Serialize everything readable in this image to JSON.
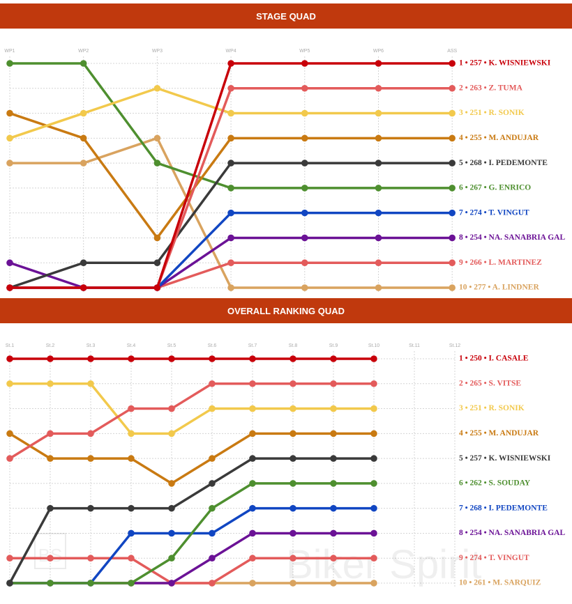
{
  "chart_data": [
    {
      "type": "line",
      "title": "STAGE QUAD",
      "categories": [
        "WP1",
        "WP2",
        "WP3",
        "WP4",
        "WP5",
        "WP6",
        "ASS"
      ],
      "ylim": [
        1,
        10
      ],
      "y_inverted": true,
      "yticks": [
        1,
        2,
        3,
        4,
        5,
        6,
        7,
        8,
        9,
        10
      ],
      "grid": true,
      "series": [
        {
          "name": "1 • 257 • K. WISNIEWSKI",
          "color": "#c8000a",
          "values": [
            10,
            10,
            10,
            1,
            1,
            1,
            1
          ]
        },
        {
          "name": "2 • 263 • Z. TUMA",
          "color": "#e35b5b",
          "values": [
            10,
            10,
            10,
            2,
            2,
            2,
            2
          ]
        },
        {
          "name": "3 • 251 • R. SONIK",
          "color": "#f2c94c",
          "values": [
            4,
            3,
            2,
            3,
            3,
            3,
            3
          ]
        },
        {
          "name": "4 • 255 • M. ANDUJAR",
          "color": "#c97a12",
          "values": [
            3,
            4,
            8,
            4,
            4,
            4,
            4
          ]
        },
        {
          "name": "5 • 268 • I. PEDEMONTE",
          "color": "#3a3a3a",
          "values": [
            10,
            9,
            9,
            5,
            5,
            5,
            5
          ]
        },
        {
          "name": "6 • 267 • G. ENRICO",
          "color": "#4e8f2f",
          "values": [
            1,
            1,
            5,
            6,
            6,
            6,
            6
          ]
        },
        {
          "name": "7 • 274 • T. VINGUT",
          "color": "#1146c2",
          "values": [
            10,
            10,
            10,
            7,
            7,
            7,
            7
          ]
        },
        {
          "name": "8 • 254 • NA. SANABRIA GAL",
          "color": "#6b1296",
          "values": [
            9,
            10,
            10,
            8,
            8,
            8,
            8
          ]
        },
        {
          "name": "9 • 266 • L. MARTINEZ",
          "color": "#e35b5b",
          "values": [
            10,
            10,
            10,
            9,
            9,
            9,
            9
          ]
        },
        {
          "name": "10 • 277 • A. LINDNER",
          "color": "#d9a35f",
          "values": [
            5,
            5,
            4,
            10,
            10,
            10,
            10
          ]
        }
      ]
    },
    {
      "type": "line",
      "title": "OVERALL RANKING QUAD",
      "categories": [
        "St.1",
        "St.2",
        "St.3",
        "St.4",
        "St.5",
        "St.6",
        "St.7",
        "St.8",
        "St.9",
        "St.10",
        "St.11",
        "St.12"
      ],
      "ylim": [
        1,
        10
      ],
      "y_inverted": true,
      "yticks": [
        1,
        2,
        3,
        4,
        5,
        6,
        7,
        8,
        9,
        10
      ],
      "grid": true,
      "series": [
        {
          "name": "1 • 250 • I. CASALE",
          "color": "#c8000a",
          "values": [
            1,
            1,
            1,
            1,
            1,
            1,
            1,
            1,
            1,
            1,
            null,
            null
          ]
        },
        {
          "name": "2 • 265 • S. VITSE",
          "color": "#e35b5b",
          "values": [
            5,
            4,
            4,
            3,
            3,
            2,
            2,
            2,
            2,
            2,
            null,
            null
          ]
        },
        {
          "name": "3 • 251 • R. SONIK",
          "color": "#f2c94c",
          "values": [
            2,
            2,
            2,
            4,
            4,
            3,
            3,
            3,
            3,
            3,
            null,
            null
          ]
        },
        {
          "name": "4 • 255 • M. ANDUJAR",
          "color": "#c97a12",
          "values": [
            4,
            5,
            5,
            5,
            6,
            5,
            4,
            4,
            4,
            4,
            null,
            null
          ]
        },
        {
          "name": "5 • 257 • K. WISNIEWSKI",
          "color": "#3a3a3a",
          "values": [
            10,
            7,
            7,
            7,
            7,
            6,
            5,
            5,
            5,
            5,
            null,
            null
          ]
        },
        {
          "name": "6 • 262 • S. SOUDAY",
          "color": "#4e8f2f",
          "values": [
            10,
            10,
            10,
            10,
            9,
            7,
            6,
            6,
            6,
            6,
            null,
            null
          ]
        },
        {
          "name": "7 • 268 • I. PEDEMONTE",
          "color": "#1146c2",
          "values": [
            10,
            10,
            10,
            8,
            8,
            8,
            7,
            7,
            7,
            7,
            null,
            null
          ]
        },
        {
          "name": "8 • 254 • NA. SANABRIA GAL",
          "color": "#6b1296",
          "values": [
            10,
            10,
            10,
            10,
            10,
            9,
            8,
            8,
            8,
            8,
            null,
            null
          ]
        },
        {
          "name": "9 • 274 • T. VINGUT",
          "color": "#e35b5b",
          "values": [
            9,
            9,
            9,
            9,
            10,
            10,
            9,
            9,
            9,
            9,
            null,
            null
          ]
        },
        {
          "name": "10 • 261 • M. SARQUIZ",
          "color": "#d9a35f",
          "values": [
            10,
            10,
            10,
            10,
            10,
            10,
            10,
            10,
            10,
            10,
            null,
            null
          ]
        }
      ],
      "watermark": "Biker Spirit",
      "watermark_logo": "BS"
    }
  ]
}
